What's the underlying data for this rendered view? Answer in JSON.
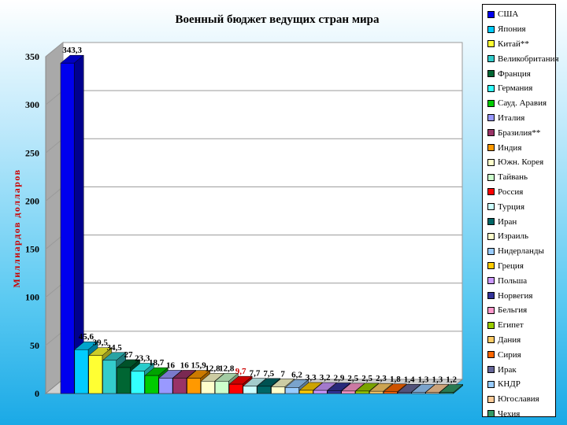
{
  "chart_data": {
    "type": "bar",
    "title": "Военный бюджет ведущих стран мира",
    "ylabel": "Миллиардов долларов",
    "ylim": [
      0,
      350
    ],
    "yticks": [
      0,
      50,
      100,
      150,
      200,
      250,
      300,
      350
    ],
    "grid": true,
    "three_d": true,
    "legend_position": "right",
    "categories": [
      "США",
      "Япония",
      "Китай**",
      "Великобритания",
      "Франция",
      "Германия",
      "Сауд. Аравия",
      "Италия",
      "Бразилия**",
      "Индия",
      "Южн. Корея",
      "Тайвань",
      "Россия",
      "Турция",
      "Иран",
      "Израиль",
      "Нидерланды",
      "Греция",
      "Польша",
      "Норвегия",
      "Бельгия",
      "Египет",
      "Дания",
      "Сирия",
      "Ирак",
      "КНДР",
      "Югославия",
      "Чехия"
    ],
    "values": [
      343.3,
      45.6,
      39.5,
      34.5,
      27,
      23.3,
      18.7,
      16,
      16,
      15.9,
      12.8,
      12.8,
      9.7,
      7.7,
      7.5,
      7,
      6.2,
      3.3,
      3.2,
      2.9,
      2.5,
      2.5,
      2.3,
      1.8,
      1.4,
      1.3,
      1.3,
      1.2
    ],
    "value_labels": [
      "343,3",
      "45,6",
      "39,5",
      "34,5",
      "27",
      "23,3",
      "18,7",
      "16",
      "16",
      "15,9",
      "12,8",
      "12,8",
      "9,7",
      "7,7",
      "7,5",
      "7",
      "6,2",
      "3,3",
      "3,2",
      "2,9",
      "2,5",
      "2,5",
      "2,3",
      "1,8",
      "1,4",
      "1,3",
      "1,3",
      "1,2"
    ],
    "colors": [
      "#0000ee",
      "#00ccff",
      "#ffff33",
      "#33cccc",
      "#006633",
      "#33ffff",
      "#00cc00",
      "#9999ff",
      "#993366",
      "#ff9900",
      "#ffffcc",
      "#ccffcc",
      "#ff0000",
      "#ccffff",
      "#006666",
      "#ffffcc",
      "#99ccff",
      "#ffcc00",
      "#cc99ff",
      "#333399",
      "#ff99cc",
      "#99cc00",
      "#ffcc66",
      "#ff6600",
      "#666699",
      "#99ccff",
      "#ffcc99",
      "#339966"
    ],
    "label_colors": [
      "#000000",
      "#000000",
      "#000000",
      "#000000",
      "#000000",
      "#000000",
      "#000000",
      "#000000",
      "#000000",
      "#000000",
      "#000000",
      "#000000",
      "#cc0000",
      "#000000",
      "#000000",
      "#000000",
      "#000000",
      "#000000",
      "#000000",
      "#000000",
      "#000000",
      "#000000",
      "#000000",
      "#000000",
      "#000000",
      "#000000",
      "#000000",
      "#000000"
    ]
  }
}
